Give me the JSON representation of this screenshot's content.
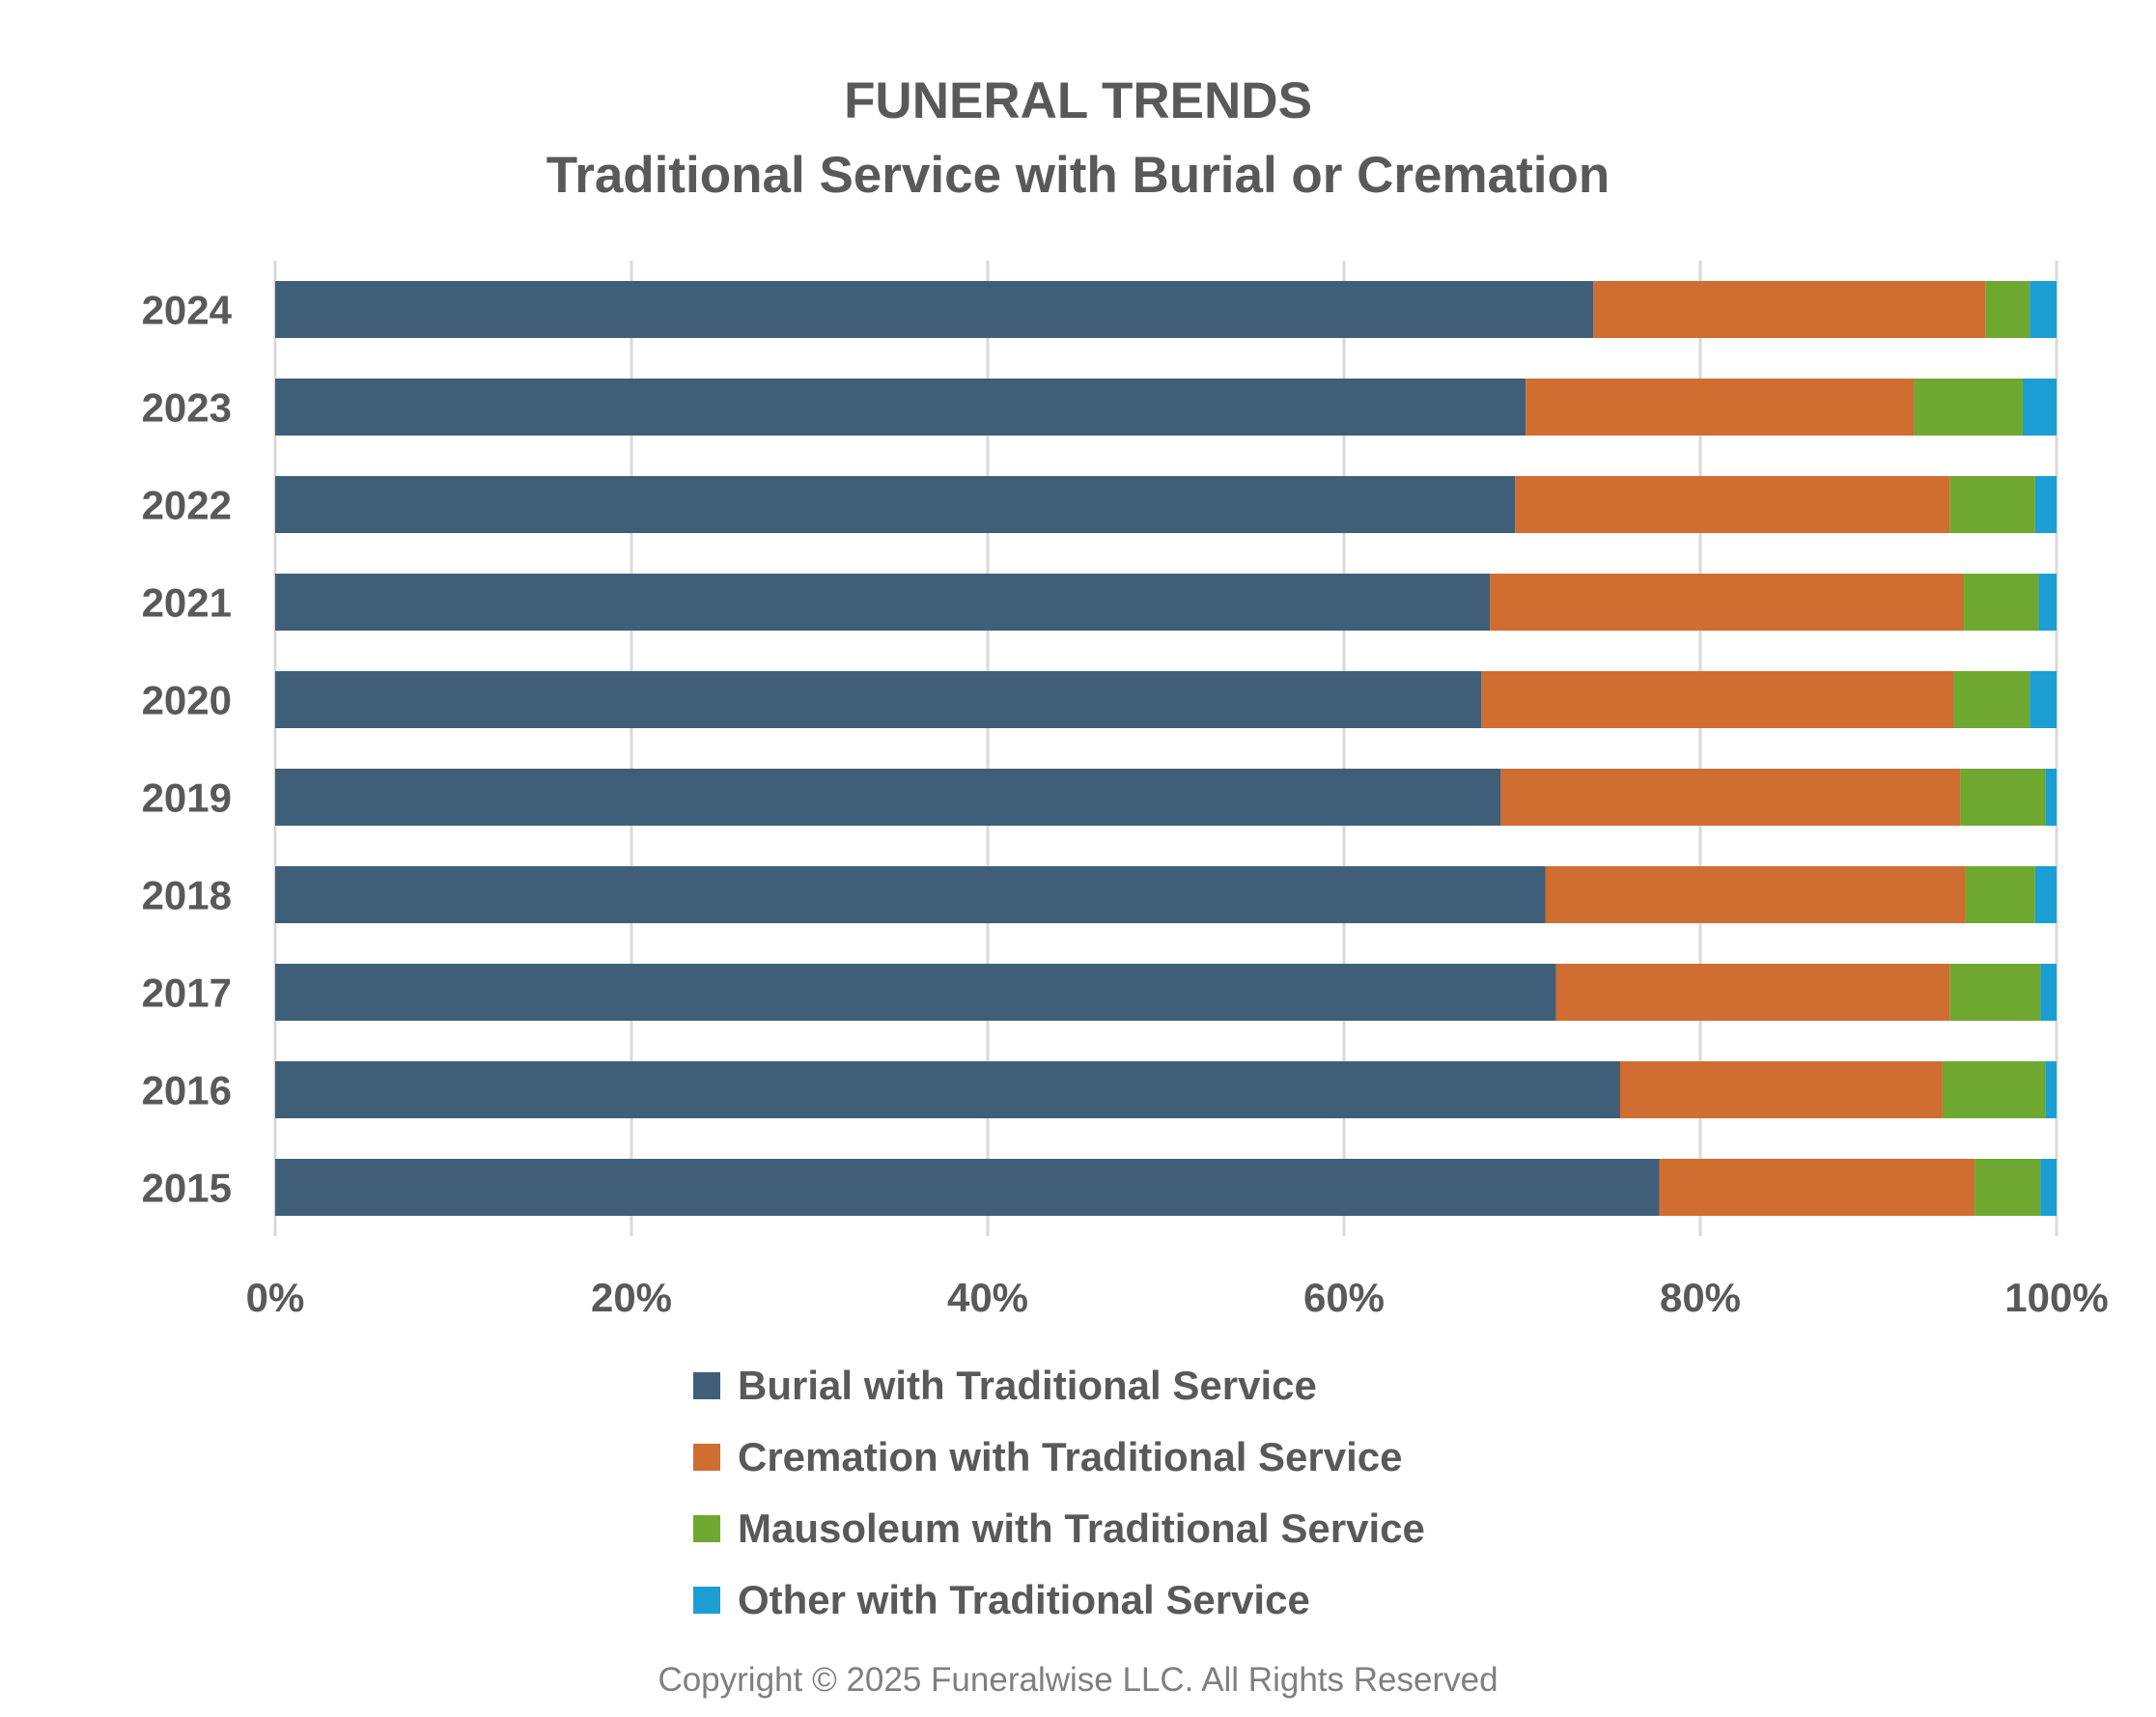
{
  "chart_data": {
    "type": "bar",
    "orientation": "horizontal",
    "stacked": "percent",
    "title": "FUNERAL TRENDS",
    "subtitle": "Traditional Service with Burial or Cremation",
    "categories": [
      "2024",
      "2023",
      "2022",
      "2021",
      "2020",
      "2019",
      "2018",
      "2017",
      "2016",
      "2015"
    ],
    "series": [
      {
        "name": "Burial with Traditional Service",
        "color": "#3f5e78",
        "values": [
          74.0,
          70.2,
          69.6,
          68.2,
          67.7,
          68.8,
          71.3,
          71.9,
          75.5,
          77.7
        ]
      },
      {
        "name": "Cremation with Traditional Service",
        "color": "#d06d31",
        "values": [
          22.0,
          21.8,
          24.4,
          26.6,
          26.5,
          25.8,
          23.6,
          22.1,
          18.1,
          17.7
        ]
      },
      {
        "name": "Mausoleum with Traditional Service",
        "color": "#6fa830",
        "values": [
          2.5,
          6.1,
          4.8,
          4.2,
          4.3,
          4.8,
          3.9,
          5.1,
          5.8,
          3.7
        ]
      },
      {
        "name": "Other with Traditional Service",
        "color": "#1b9ed4",
        "values": [
          1.5,
          1.9,
          1.2,
          1.0,
          1.5,
          0.6,
          1.2,
          0.9,
          0.6,
          0.9
        ]
      }
    ],
    "xlim": [
      0,
      100
    ],
    "xticks": [
      "0%",
      "20%",
      "40%",
      "60%",
      "80%",
      "100%"
    ],
    "grid": true,
    "legend_position": "bottom"
  },
  "copyright": "Copyright © 2025 Funeralwise LLC. All Rights Reserved"
}
